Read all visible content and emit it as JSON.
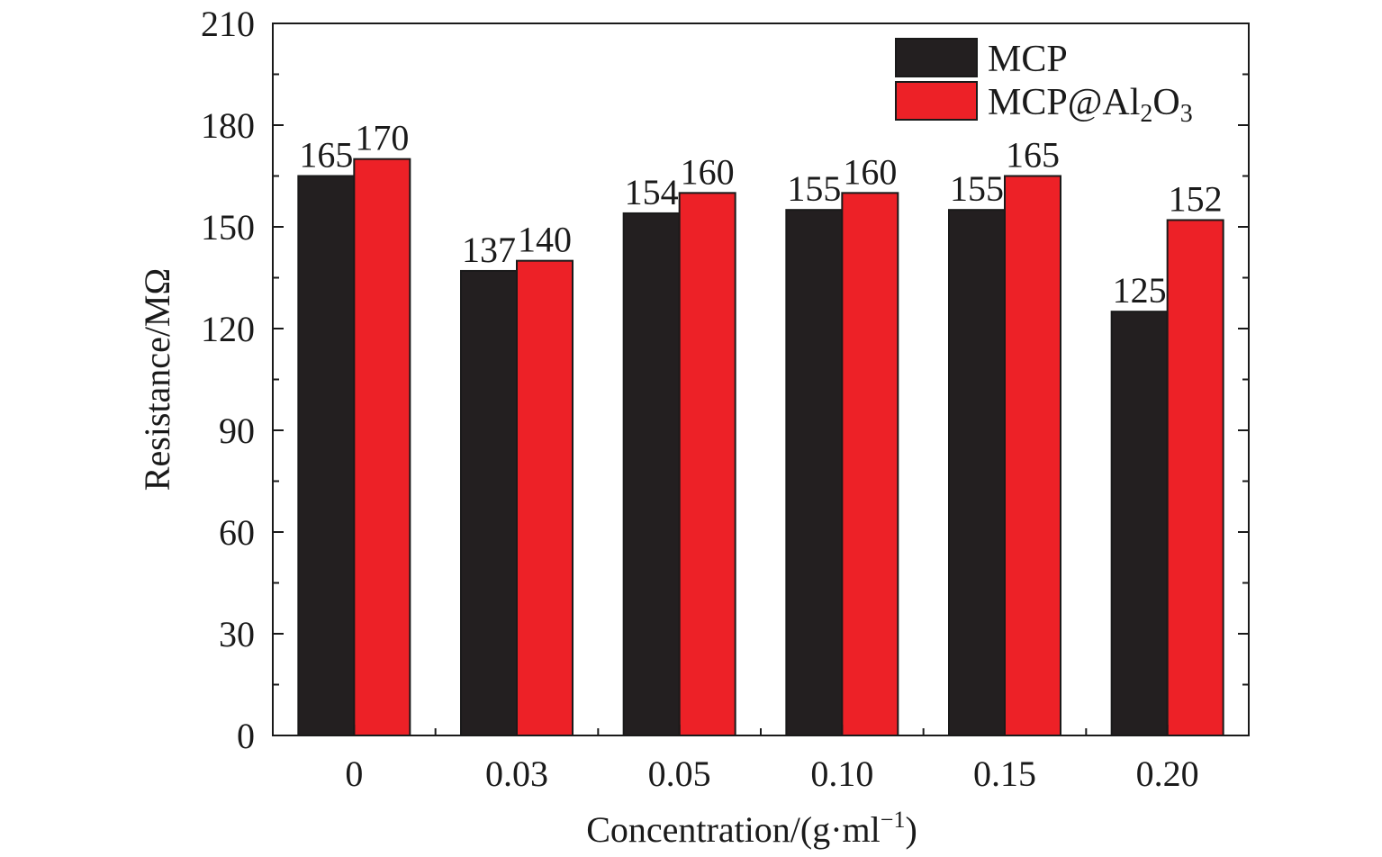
{
  "chart_data": {
    "type": "bar",
    "categories": [
      "0",
      "0.03",
      "0.05",
      "0.10",
      "0.15",
      "0.20"
    ],
    "series": [
      {
        "name": "MCP",
        "color": "#231f20",
        "values": [
          165,
          137,
          154,
          155,
          155,
          125
        ]
      },
      {
        "name": "MCP@Al₂O₃",
        "name_parts": [
          "MCP@Al",
          "2",
          "O",
          "3"
        ],
        "color": "#ed2127",
        "values": [
          170,
          140,
          160,
          160,
          165,
          152
        ]
      }
    ],
    "data_labels": [
      [
        "165",
        "137",
        "154",
        "155",
        "155",
        "125"
      ],
      [
        "170",
        "140",
        "160",
        "160",
        "165",
        "152"
      ]
    ],
    "xlabel": "Concentration/(g·ml⁻¹)",
    "xlabel_parts": [
      "Concentration/(g·ml",
      "−1",
      ")"
    ],
    "ylabel": "Resistance/MΩ",
    "ylim": [
      0,
      210
    ],
    "yticks": [
      "0",
      "30",
      "60",
      "90",
      "120",
      "150",
      "180",
      "210"
    ],
    "ytick_values": [
      0,
      30,
      60,
      90,
      120,
      150,
      180,
      210
    ],
    "grid": false,
    "legend_position": "top-right"
  }
}
